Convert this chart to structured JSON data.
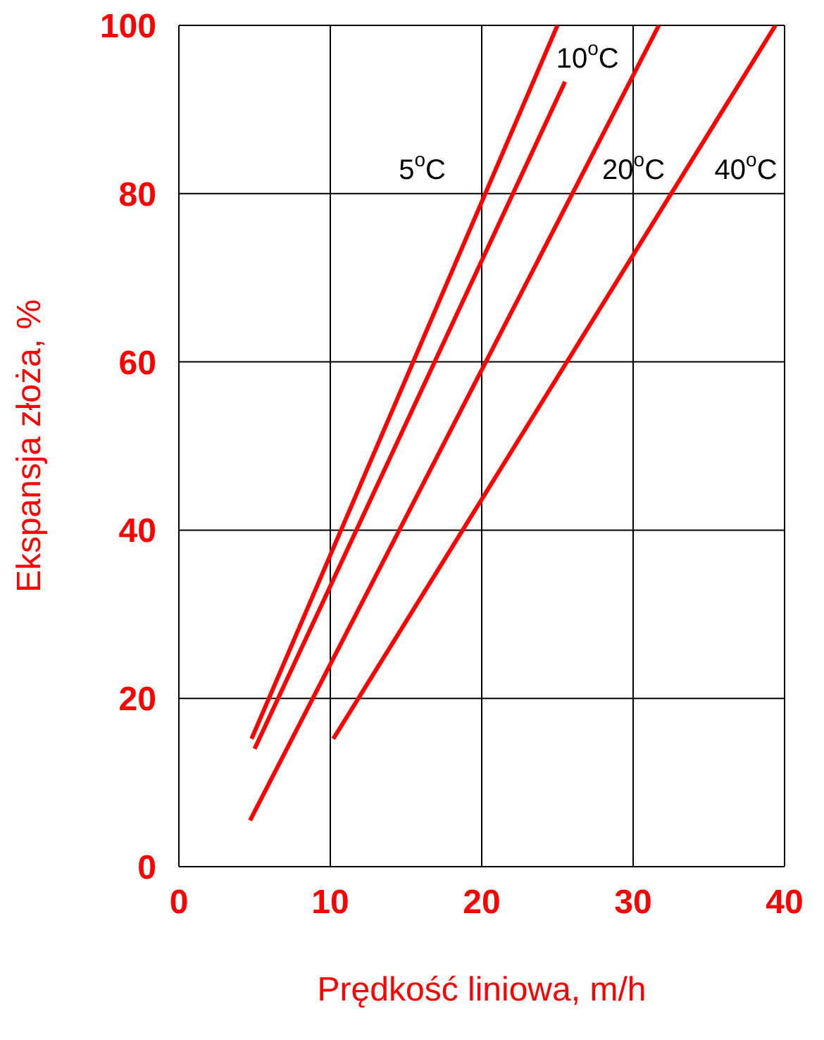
{
  "chart_data": {
    "type": "line",
    "xlabel": "Prędkość liniowa, m/h",
    "ylabel": "Ekspansja złoża, %",
    "xlim": [
      0,
      40
    ],
    "xticks": [
      0,
      10,
      20,
      30,
      40
    ],
    "ylim": [
      0,
      100
    ],
    "yticks": [
      0,
      20,
      40,
      60,
      80,
      100
    ],
    "grid": true,
    "marker": "none",
    "line_style": "solid",
    "series": [
      {
        "name": "5$^{o}$C",
        "color": "#ff0000",
        "x": [
          4.8,
          25
        ],
        "values": [
          15.2,
          100
        ]
      },
      {
        "name": "10$^{o}$C",
        "color": "#ff0000",
        "x": [
          5,
          25.5
        ],
        "values": [
          14,
          93.3
        ]
      },
      {
        "name": "20$^{o}$C",
        "color": "#ff0000",
        "x": [
          4.7,
          31.7
        ],
        "values": [
          5.5,
          100
        ]
      },
      {
        "name": "40$^{o}$C",
        "color": "#ff0000",
        "x": [
          10.2,
          39.4
        ],
        "values": [
          15.2,
          100
        ]
      }
    ]
  }
}
